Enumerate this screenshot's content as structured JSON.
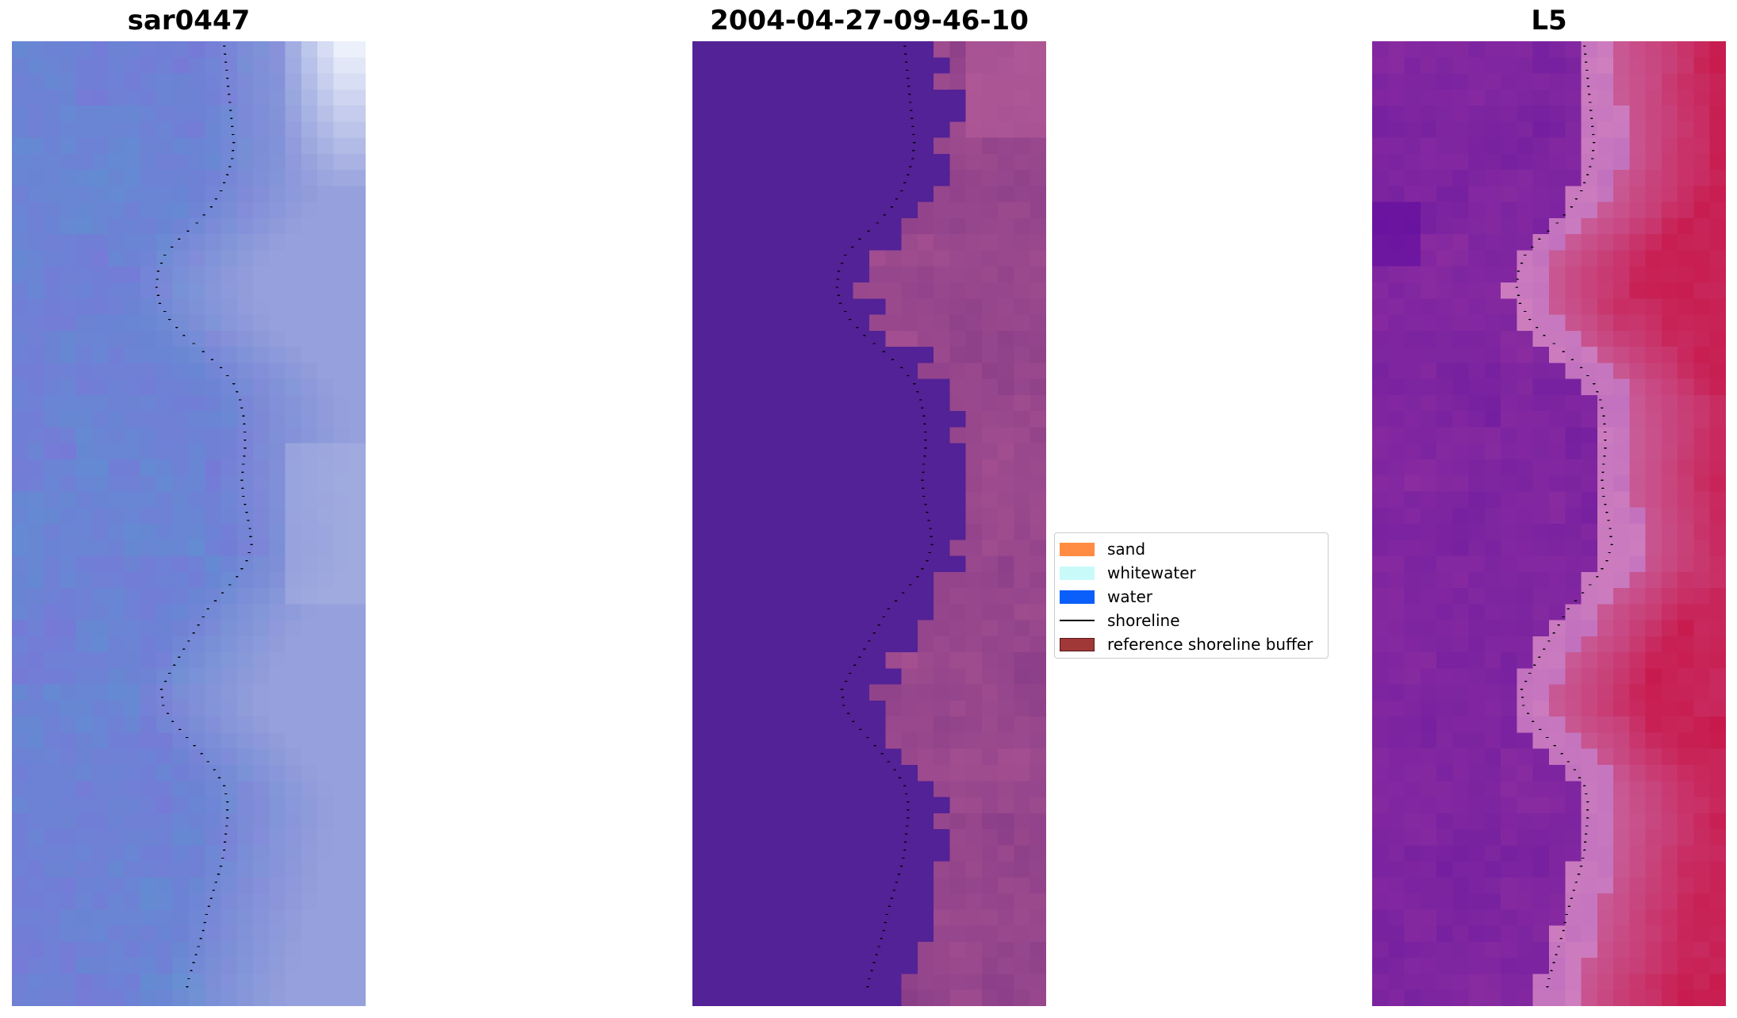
{
  "figure": {
    "panels": [
      {
        "title": "sar0447",
        "image": "false-colour satellite image of coastal strip with detected shoreline"
      },
      {
        "title": "2004-04-27-09-46-10",
        "image": "classified image with detected shoreline"
      },
      {
        "title": "L5",
        "image": "water index (MNDWI) image with detected shoreline"
      }
    ],
    "legend": {
      "entries": [
        {
          "label": "sand",
          "kind": "patch",
          "color": "#ff8c42"
        },
        {
          "label": "whitewater",
          "kind": "patch",
          "color": "#c8fafa"
        },
        {
          "label": "water",
          "kind": "patch",
          "color": "#0a5ffa"
        },
        {
          "label": "shoreline",
          "kind": "line",
          "color": "#000000"
        },
        {
          "label": "reference shoreline buffer",
          "kind": "patch",
          "color": "#a03838"
        }
      ]
    }
  }
}
